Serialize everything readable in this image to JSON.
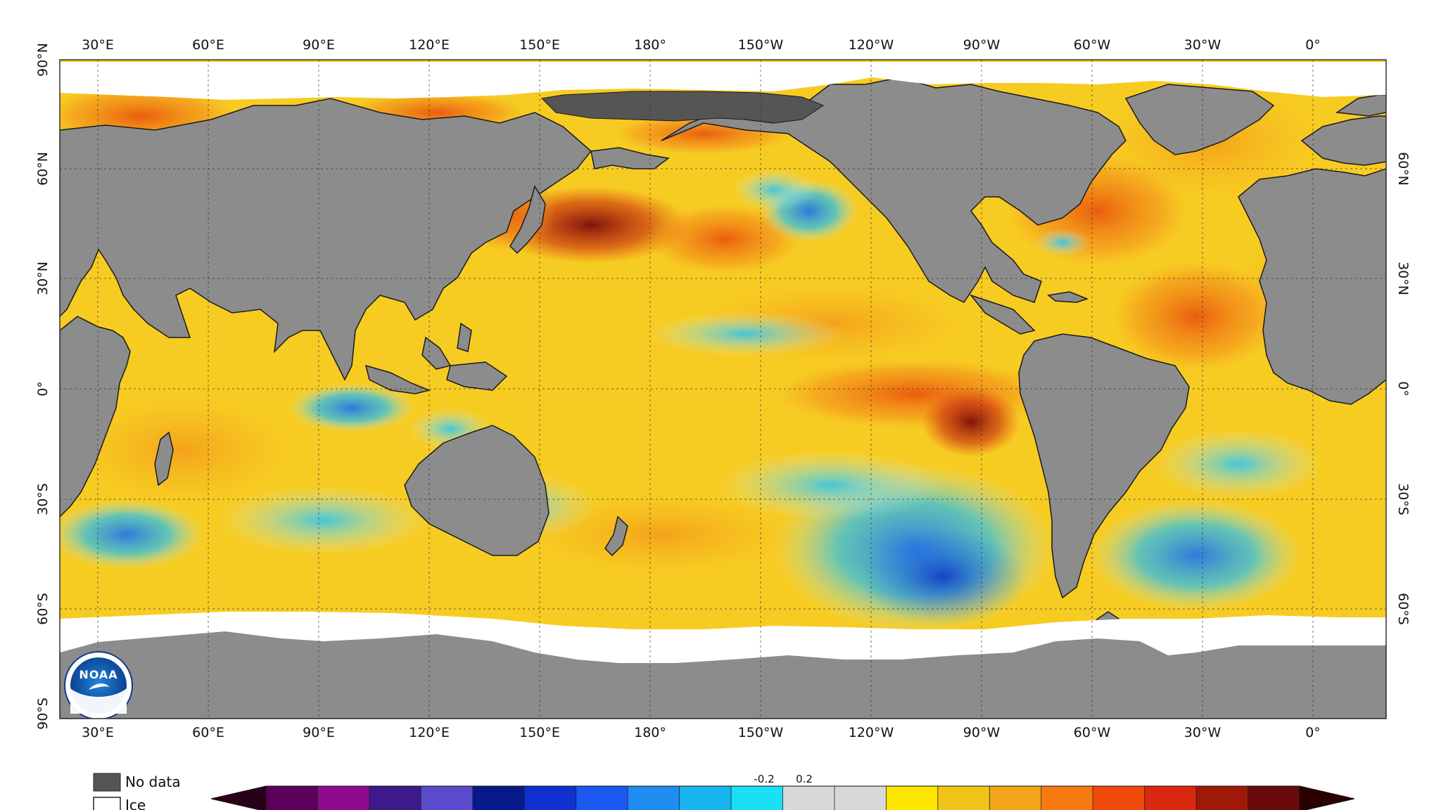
{
  "map": {
    "top_labels": [
      "30°E",
      "60°E",
      "90°E",
      "120°E",
      "150°E",
      "180°",
      "150°W",
      "120°W",
      "90°W",
      "60°W",
      "30°W",
      "0°"
    ],
    "bottom_labels": [
      "30°E",
      "60°E",
      "90°E",
      "120°E",
      "150°E",
      "180°",
      "150°W",
      "120°W",
      "90°W",
      "60°W",
      "30°W",
      "0°"
    ],
    "left_labels": [
      "90°N",
      "60°N",
      "30°N",
      "0°",
      "30°S",
      "60°S",
      "90°S"
    ],
    "right_labels": [
      "60°N",
      "30°N",
      "0°",
      "30°S",
      "60°S"
    ],
    "colors": {
      "land": "#8c8c8c",
      "no_data": "#555555",
      "ice": "#ffffff",
      "grid": "#333333"
    },
    "logo": {
      "text": "NOAA"
    }
  },
  "legend": {
    "no_data_label": "No data",
    "ice_label": "Ice",
    "scale_ticks": [
      "-0.2",
      "0.2"
    ],
    "colorbar_colors": [
      "#2a0018",
      "#5a005a",
      "#8e0a8e",
      "#3c1a8c",
      "#5a4bcc",
      "#081a8a",
      "#1030d0",
      "#1a58f0",
      "#1e8cf0",
      "#18b4f0",
      "#19e0f5",
      "#d8d8d8",
      "#d8d8d8",
      "#ffe600",
      "#f0c418",
      "#f2a41a",
      "#f57a12",
      "#f04a0c",
      "#d82810",
      "#a01808",
      "#6a0a0a",
      "#2a0000"
    ]
  }
}
